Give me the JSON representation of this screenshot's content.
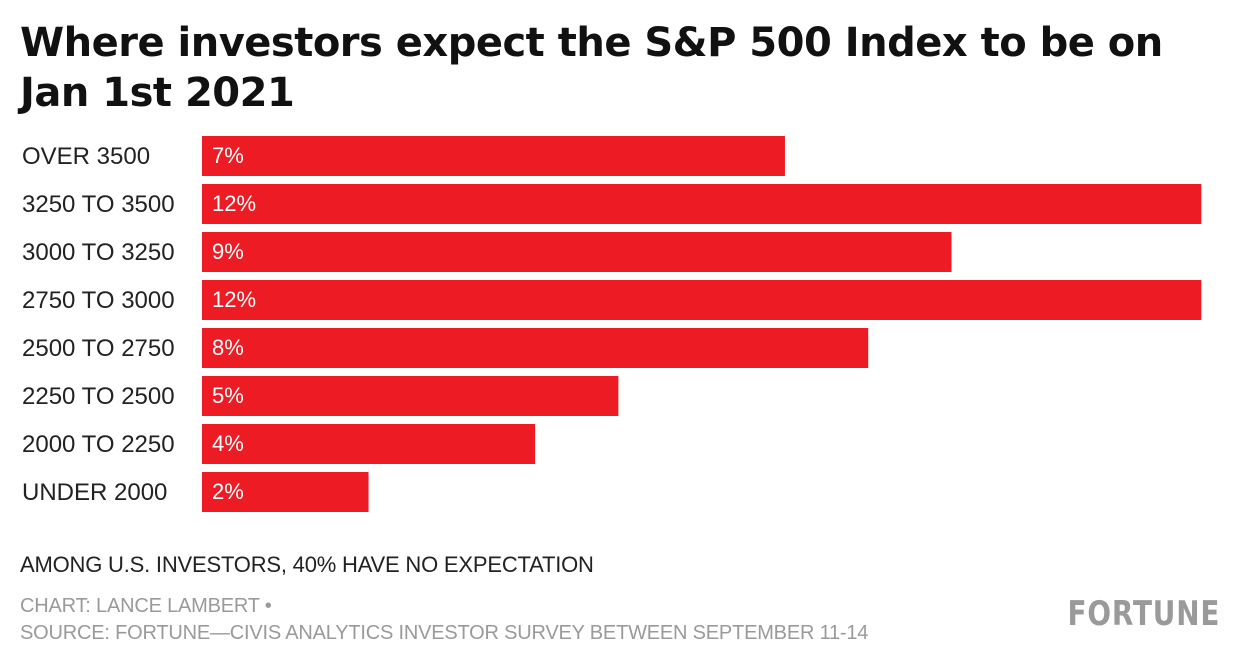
{
  "chart_data": {
    "type": "bar",
    "orientation": "horizontal",
    "title": "Where investors expect the S&P 500 Index to be on Jan 1st 2021",
    "categories": [
      "OVER 3500",
      "3250 TO 3500",
      "3000 TO 3250",
      "2750 TO 3000",
      "2500 TO 2750",
      "2250 TO 2500",
      "2000 TO 2250",
      "UNDER 2000"
    ],
    "values": [
      7,
      12,
      9,
      12,
      8,
      5,
      4,
      2
    ],
    "value_labels": [
      "7%",
      "12%",
      "9%",
      "12%",
      "8%",
      "5%",
      "4%",
      "2%"
    ],
    "bar_color": "#ed1c24",
    "xlim": [
      0,
      12.2
    ],
    "xlabel": "",
    "ylabel": "",
    "grid": false,
    "legend": "none"
  },
  "note": "AMONG U.S. INVESTORS, 40% HAVE NO EXPECTATION",
  "credit": {
    "chart": "CHART: LANCE LAMBERT •",
    "source": "SOURCE: FORTUNE—CIVIS ANALYTICS INVESTOR SURVEY BETWEEN SEPTEMBER 11-14"
  },
  "logo_text": "FORTUNE"
}
